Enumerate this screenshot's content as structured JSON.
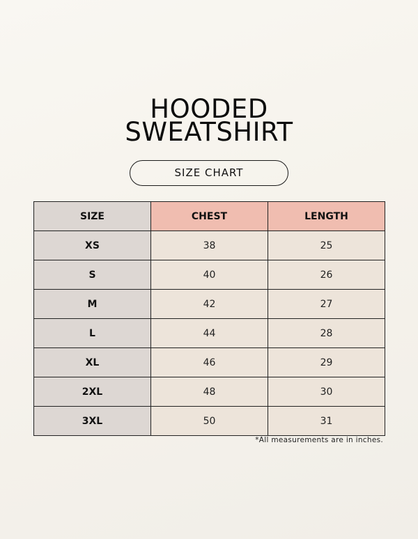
{
  "header": {
    "title_lines": [
      "HOODED",
      "SWEATSHIRT"
    ],
    "subtitle": "SIZE CHART"
  },
  "table": {
    "columns": [
      "SIZE",
      "CHEST",
      "LENGTH"
    ],
    "rows": [
      [
        "XS",
        38,
        25
      ],
      [
        "S",
        40,
        26
      ],
      [
        "M",
        42,
        27
      ],
      [
        "L",
        44,
        28
      ],
      [
        "XL",
        46,
        29
      ],
      [
        "2XL",
        48,
        30
      ],
      [
        "3XL",
        50,
        31
      ]
    ]
  },
  "note": "*All measurements are in inches."
}
